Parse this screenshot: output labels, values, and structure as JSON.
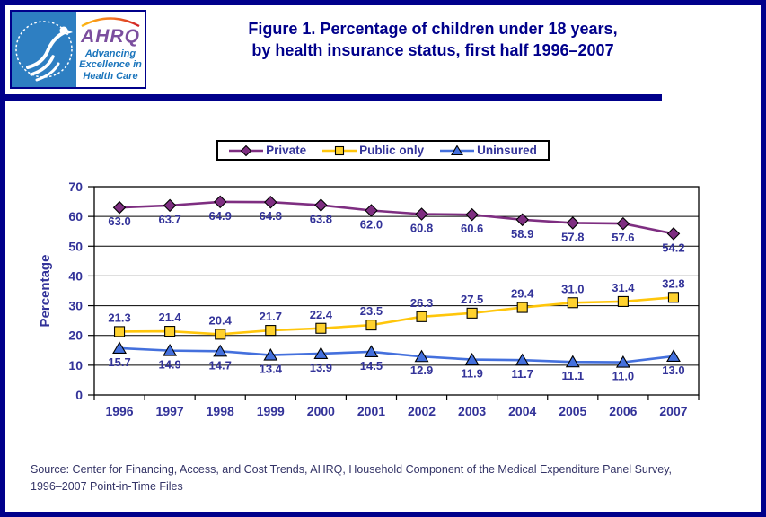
{
  "figure": {
    "title_line1": "Figure 1. Percentage of children under 18 years,",
    "title_line2": "by health insurance status, first half 1996–2007",
    "source_line1": "Source: Center for Financing, Access, and Cost Trends, AHRQ, Household Component of the Medical Expenditure Panel Survey,",
    "source_line2": "1996–2007 Point-in-Time Files"
  },
  "logo": {
    "acronym": "AHRQ",
    "tagline_line1": "Advancing",
    "tagline_line2": "Excellence in",
    "tagline_line3": "Health Care"
  },
  "colors": {
    "frame_border": "#00008B",
    "title_text": "#00008B",
    "axis_text": "#333399",
    "grid_line": "#000000",
    "hhs_seal_blue": "#2E7FC2",
    "ahrq_purple": "#7B4E9E",
    "tagline_blue": "#1B75BC"
  },
  "chart_data": {
    "type": "line",
    "title": "",
    "xlabel": "",
    "ylabel": "Percentage",
    "ylim": [
      0,
      70
    ],
    "y_ticks": [
      0,
      10,
      20,
      30,
      40,
      50,
      60,
      70
    ],
    "grid": true,
    "legend_position": "top-center",
    "categories": [
      "1996",
      "1997",
      "1998",
      "1999",
      "2000",
      "2001",
      "2002",
      "2003",
      "2004",
      "2005",
      "2006",
      "2007"
    ],
    "series": [
      {
        "name": "Private",
        "marker": "diamond",
        "color": "#7E2E81",
        "marker_fill": "#7E2E81",
        "label_position": "below",
        "values": [
          63.0,
          63.7,
          64.9,
          64.8,
          63.8,
          62.0,
          60.8,
          60.6,
          58.9,
          57.8,
          57.6,
          54.2
        ]
      },
      {
        "name": "Public only",
        "marker": "square",
        "color": "#FFC60B",
        "marker_fill": "#FFD22E",
        "label_position": "above",
        "values": [
          21.3,
          21.4,
          20.4,
          21.7,
          22.4,
          23.5,
          26.3,
          27.5,
          29.4,
          31.0,
          31.4,
          32.8
        ]
      },
      {
        "name": "Uninsured",
        "marker": "triangle-up",
        "color": "#4470DD",
        "marker_fill": "#4470DD",
        "label_position": "below",
        "values": [
          15.7,
          14.9,
          14.7,
          13.4,
          13.9,
          14.5,
          12.9,
          11.9,
          11.7,
          11.1,
          11.0,
          13.0
        ]
      }
    ]
  }
}
